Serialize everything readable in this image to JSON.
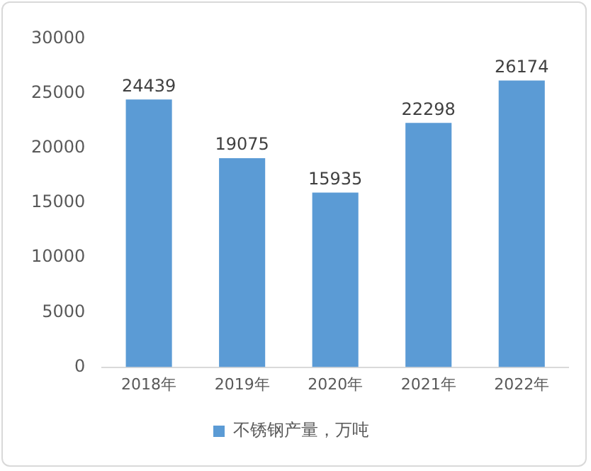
{
  "chart_data": {
    "type": "bar",
    "categories": [
      "2018年",
      "2019年",
      "2020年",
      "2021年",
      "2022年"
    ],
    "series": [
      {
        "name": "不锈钢产量，万吨",
        "color": "#5b9bd5",
        "values": [
          24439,
          19075,
          15935,
          22298,
          26174
        ]
      }
    ],
    "ylim": [
      0,
      30000
    ],
    "yticks": [
      0,
      5000,
      10000,
      15000,
      20000,
      25000,
      30000
    ],
    "grid": false,
    "legend": "bottom",
    "data_labels": true
  }
}
